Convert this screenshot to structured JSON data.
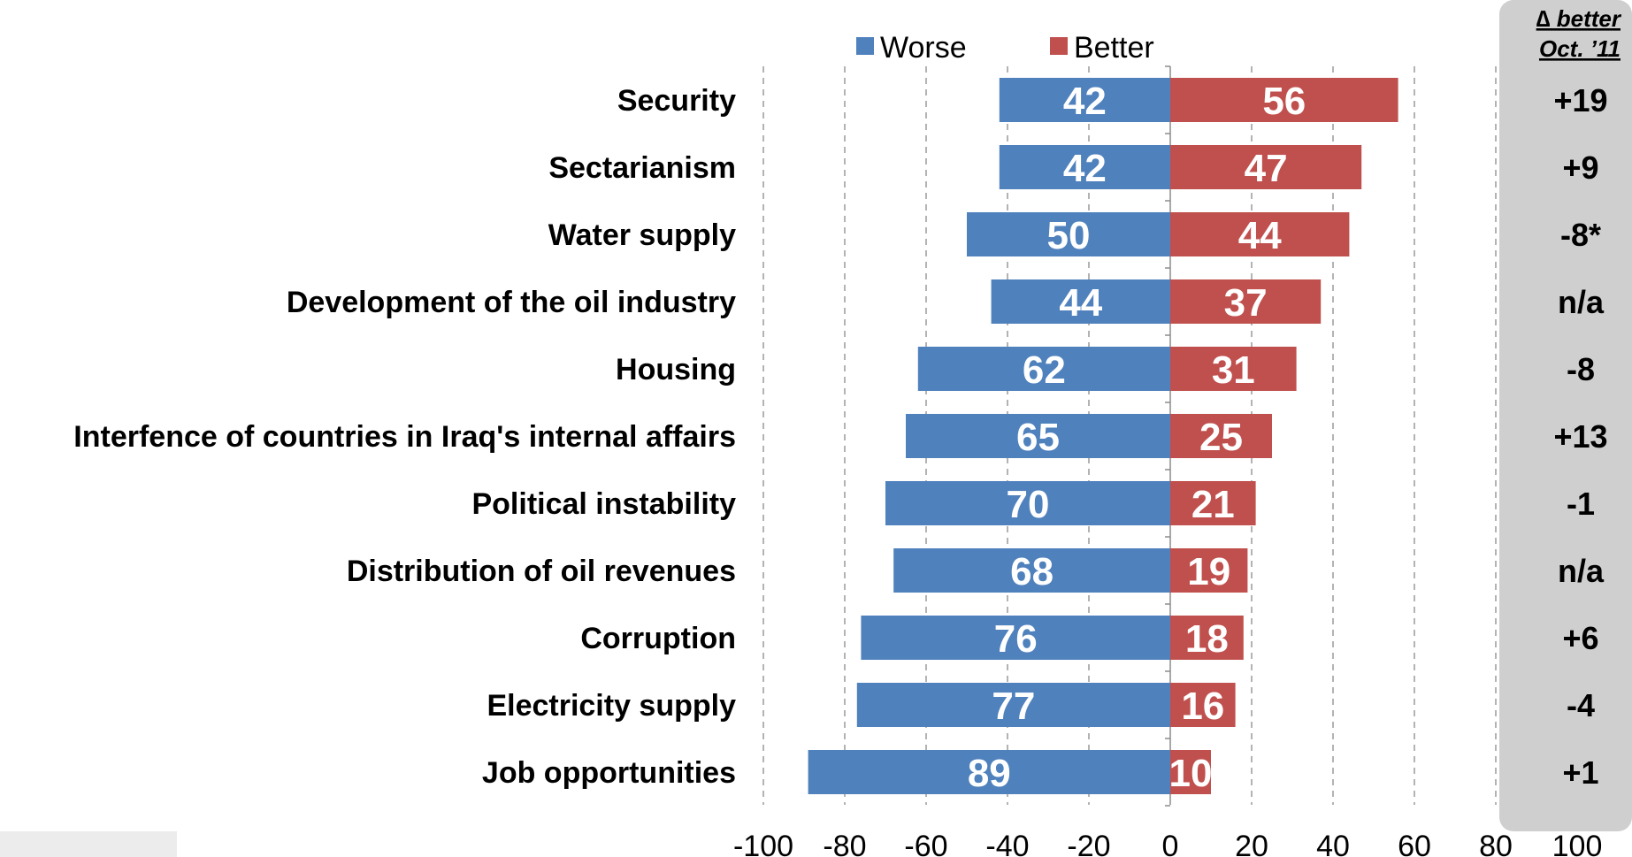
{
  "chart_data": {
    "type": "bar",
    "orientation": "horizontal",
    "stacked": "diverging",
    "categories": [
      "Security",
      "Sectarianism",
      "Water supply",
      "Development of the oil industry",
      "Housing",
      "Interfence of countries in Iraq's internal affairs",
      "Political instability",
      "Distribution of oil revenues",
      "Corruption",
      "Electricity supply",
      "Job opportunities"
    ],
    "series": [
      {
        "name": "Worse",
        "color": "#4f81bd",
        "values": [
          42,
          42,
          50,
          44,
          62,
          65,
          70,
          68,
          76,
          77,
          89
        ]
      },
      {
        "name": "Better",
        "color": "#c0504d",
        "values": [
          56,
          47,
          44,
          37,
          31,
          25,
          21,
          19,
          18,
          16,
          10
        ]
      }
    ],
    "xlim": [
      -100,
      100
    ],
    "x_ticks": [
      "-100",
      "-80",
      "-60",
      "-40",
      "-20",
      "0",
      "20",
      "40",
      "60",
      "80",
      "100"
    ],
    "grid": "vertical-dashed",
    "legend": "top-center",
    "side_panel": {
      "header_line1": "∆ better",
      "header_line2": "Oct. ’11",
      "values": [
        "+19",
        "+9",
        "-8*",
        "n/a",
        "-8",
        "+13",
        "-1",
        "n/a",
        "+6",
        "-4",
        "+1"
      ],
      "background": "#cfcfcf"
    }
  }
}
